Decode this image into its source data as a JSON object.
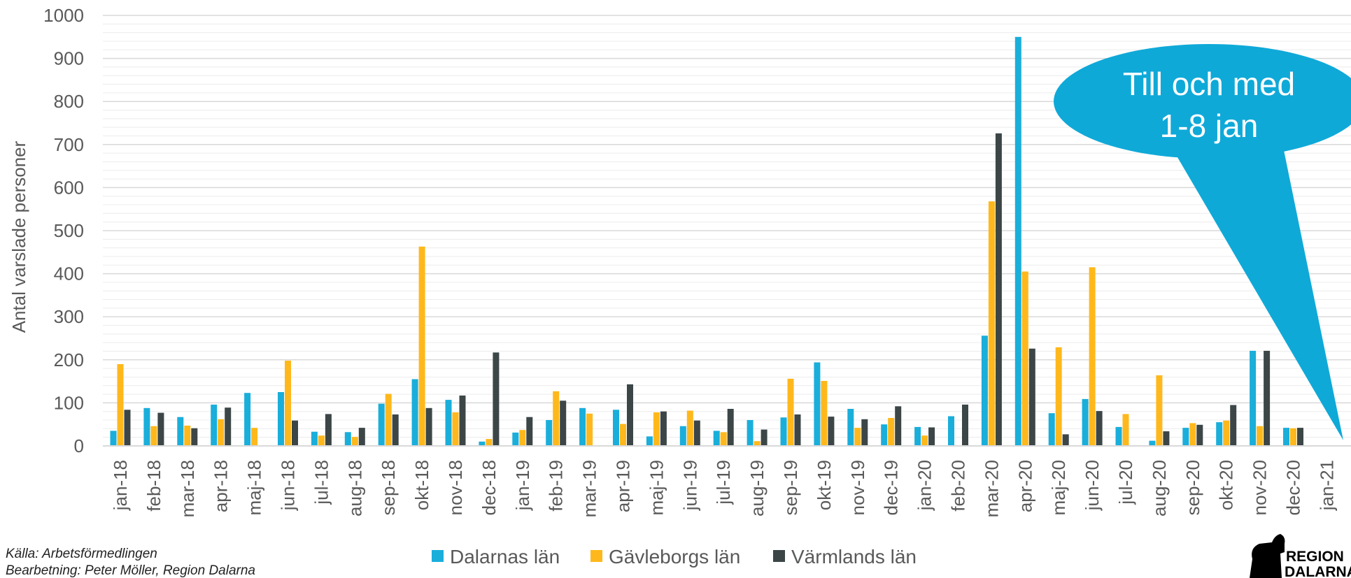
{
  "chart_data": {
    "type": "bar",
    "ylabel": "Antal varslade personer",
    "xlabel": "",
    "title": "",
    "ylim": [
      0,
      1000
    ],
    "y_ticks": [
      0,
      100,
      200,
      300,
      400,
      500,
      600,
      700,
      800,
      900,
      1000
    ],
    "minor_grid_step": 20,
    "grid": true,
    "legend_position": "bottom",
    "categories": [
      "jan-18",
      "feb-18",
      "mar-18",
      "apr-18",
      "maj-18",
      "jun-18",
      "jul-18",
      "aug-18",
      "sep-18",
      "okt-18",
      "nov-18",
      "dec-18",
      "jan-19",
      "feb-19",
      "mar-19",
      "apr-19",
      "maj-19",
      "jun-19",
      "jul-19",
      "aug-19",
      "sep-19",
      "okt-19",
      "nov-19",
      "dec-19",
      "jan-20",
      "feb-20",
      "mar-20",
      "apr-20",
      "maj-20",
      "jun-20",
      "jul-20",
      "aug-20",
      "sep-20",
      "okt-20",
      "nov-20",
      "dec-20",
      "jan-21"
    ],
    "series": [
      {
        "name": "Dalarnas län",
        "color": "#1AAEDB",
        "values": [
          35,
          88,
          67,
          96,
          123,
          125,
          33,
          32,
          98,
          155,
          107,
          10,
          31,
          60,
          88,
          84,
          22,
          46,
          35,
          60,
          66,
          194,
          86,
          50,
          44,
          69,
          256,
          950,
          76,
          109,
          44,
          12,
          42,
          55,
          221,
          42,
          0
        ]
      },
      {
        "name": "Gävleborgs län",
        "color": "#FFB81C",
        "values": [
          190,
          46,
          47,
          62,
          42,
          198,
          24,
          21,
          121,
          463,
          78,
          16,
          37,
          127,
          75,
          51,
          78,
          82,
          32,
          11,
          156,
          151,
          42,
          65,
          24,
          0,
          568,
          405,
          229,
          415,
          74,
          164,
          53,
          59,
          46,
          41,
          0
        ]
      },
      {
        "name": "Värmlands län",
        "color": "#3C4647",
        "values": [
          84,
          77,
          41,
          89,
          0,
          59,
          74,
          42,
          73,
          88,
          117,
          217,
          67,
          105,
          0,
          143,
          80,
          59,
          86,
          38,
          73,
          68,
          62,
          92,
          43,
          96,
          726,
          226,
          27,
          81,
          0,
          34,
          49,
          95,
          221,
          42,
          0
        ]
      }
    ]
  },
  "callout": {
    "line1": "Till och med",
    "line2": "1-8 jan",
    "color": "#0FA9D8"
  },
  "source": {
    "line1": "Källa: Arbetsförmedlingen",
    "line2": "Bearbetning: Peter Möller, Region Dalarna"
  },
  "logo": {
    "line1": "REGION",
    "line2": "DALARNA",
    "icon": "dala-horse-icon"
  }
}
